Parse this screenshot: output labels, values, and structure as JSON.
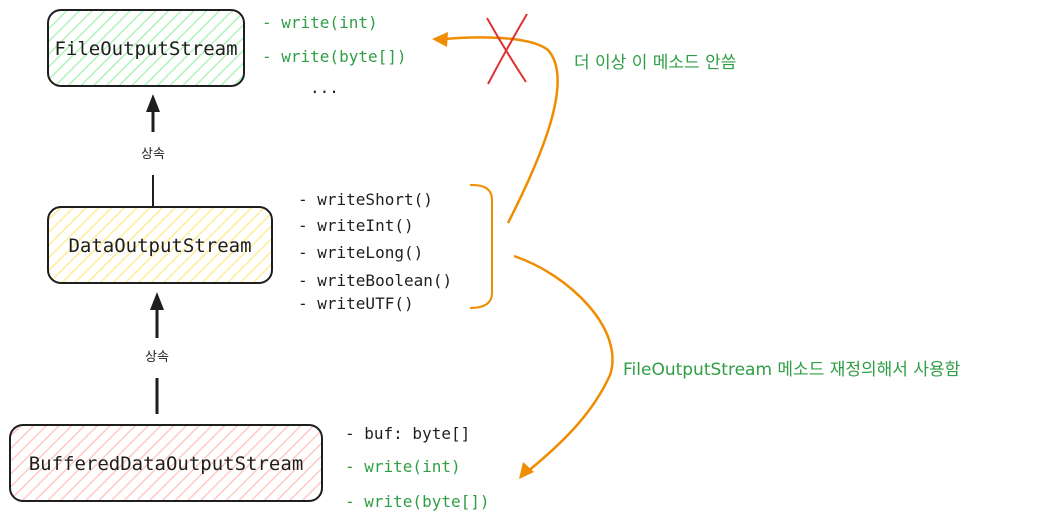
{
  "colors": {
    "stroke": "#1e1e1e",
    "green_text": "#2f9e44",
    "orange": "#f08c00",
    "red_x": "#e03131",
    "file_fill": "#b2f2bb",
    "data_fill": "#ffec99",
    "buffered_fill": "#ffc9c9"
  },
  "boxes": {
    "file": {
      "label": "FileOutputStream"
    },
    "data": {
      "label": "DataOutputStream"
    },
    "buffered": {
      "label": "BufferedDataOutputStream"
    }
  },
  "file_methods": [
    "- write(int)",
    "- write(byte[])",
    "..."
  ],
  "data_methods": [
    "- writeShort()",
    "- writeInt()",
    "- writeLong()",
    "- writeBoolean()",
    "- writeUTF()"
  ],
  "buffered_members": {
    "field": "- buf: byte[]",
    "methods": [
      "- write(int)",
      "- write(byte[])"
    ]
  },
  "inheritance": {
    "upper_label": "상속",
    "lower_label": "상속"
  },
  "notes": {
    "no_longer_used": "더 이상 이 메소드 안씀",
    "redefined": "FileOutputStream 메소드 재정의해서 사용함"
  }
}
